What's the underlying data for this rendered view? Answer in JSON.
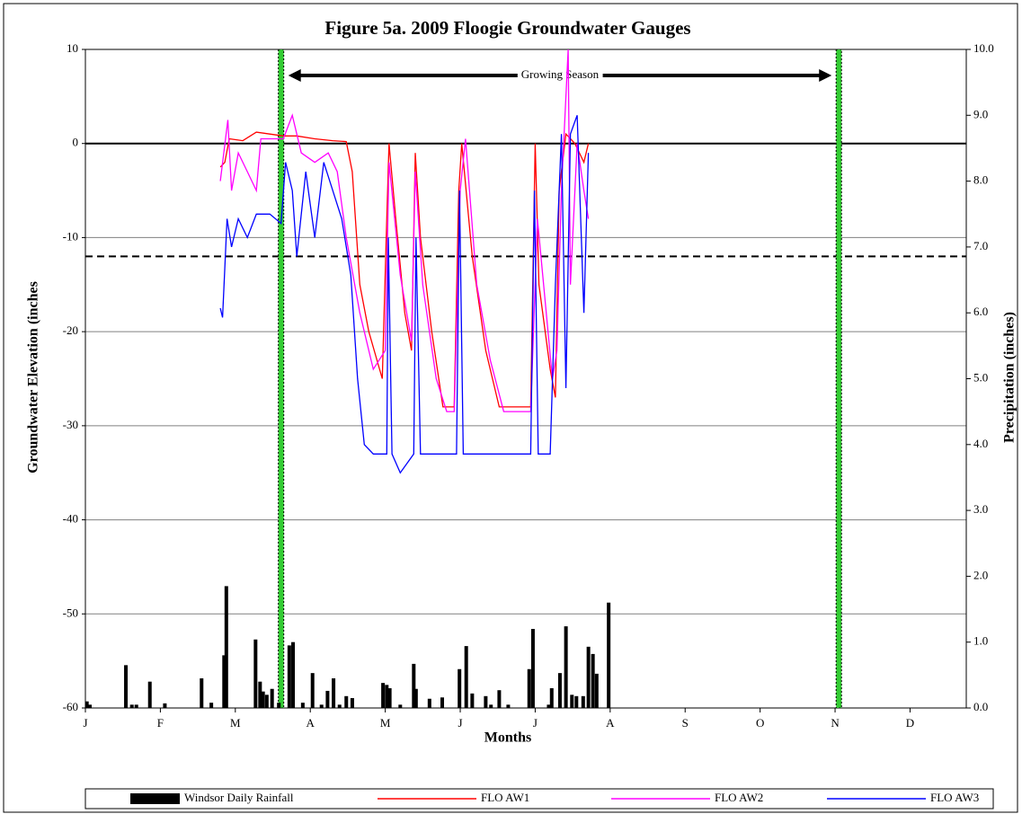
{
  "chart_data": {
    "type": "combo",
    "title": "Figure 5a.  2009 Floogie Groundwater Gauges",
    "xlabel": "Months",
    "ylabel": "Groundwater Elevation (inches",
    "y2label": "Precipitation (inches)",
    "annotation": "Growing Season",
    "xlim": [
      0,
      11.75
    ],
    "xticks": [
      {
        "value": 0,
        "label": "J"
      },
      {
        "value": 1,
        "label": "F"
      },
      {
        "value": 2,
        "label": "M"
      },
      {
        "value": 3,
        "label": "A"
      },
      {
        "value": 4,
        "label": "M"
      },
      {
        "value": 5,
        "label": "J"
      },
      {
        "value": 6,
        "label": "J"
      },
      {
        "value": 7,
        "label": "A"
      },
      {
        "value": 8,
        "label": "S"
      },
      {
        "value": 9,
        "label": "O"
      },
      {
        "value": 10,
        "label": "N"
      },
      {
        "value": 11,
        "label": "D"
      }
    ],
    "ylim": [
      -60,
      10
    ],
    "yticks": [
      10,
      0,
      -10,
      -20,
      -30,
      -40,
      -50,
      -60
    ],
    "y2lim": [
      0,
      10
    ],
    "y2ticks": [
      {
        "value": 0,
        "label": "0.0"
      },
      {
        "value": 1,
        "label": "1.0"
      },
      {
        "value": 2,
        "label": "2.0"
      },
      {
        "value": 3,
        "label": "3.0"
      },
      {
        "value": 4,
        "label": "4.0"
      },
      {
        "value": 5,
        "label": "5.0"
      },
      {
        "value": 6,
        "label": "6.0"
      },
      {
        "value": 7,
        "label": "7.0"
      },
      {
        "value": 8,
        "label": "8.0"
      },
      {
        "value": 9,
        "label": "9.0"
      },
      {
        "value": 10,
        "label": "10.0"
      }
    ],
    "grid": true,
    "reference_lines": [
      {
        "value": 0,
        "style": "solid"
      },
      {
        "value": -12,
        "style": "dashed"
      }
    ],
    "growing_season": [
      2.61,
      10.05
    ],
    "series": [
      {
        "name": "Windsor Daily Rainfall",
        "type": "bar",
        "axis": "y2",
        "color": "#000000",
        "x": [
          0.02,
          0.06,
          0.54,
          0.62,
          0.68,
          0.86,
          1.06,
          1.55,
          1.68,
          1.85,
          1.88,
          2.27,
          2.33,
          2.37,
          2.42,
          2.49,
          2.58,
          2.72,
          2.77,
          2.9,
          3.03,
          3.15,
          3.23,
          3.31,
          3.39,
          3.48,
          3.56,
          3.97,
          4.02,
          4.06,
          4.2,
          4.38,
          4.41,
          4.59,
          4.76,
          4.99,
          5.08,
          5.16,
          5.34,
          5.41,
          5.52,
          5.64,
          5.92,
          5.97,
          6.18,
          6.22,
          6.33,
          6.41,
          6.49,
          6.55,
          6.64,
          6.71,
          6.77,
          6.82,
          6.98
        ],
        "values": [
          0.1,
          0.05,
          0.65,
          0.05,
          0.05,
          0.4,
          0.07,
          0.45,
          0.08,
          0.8,
          1.85,
          1.04,
          0.4,
          0.25,
          0.2,
          0.29,
          0.08,
          0.95,
          1.0,
          0.08,
          0.53,
          0.05,
          0.26,
          0.45,
          0.05,
          0.18,
          0.15,
          0.38,
          0.35,
          0.3,
          0.05,
          0.67,
          0.29,
          0.14,
          0.16,
          0.59,
          0.94,
          0.22,
          0.18,
          0.05,
          0.27,
          0.05,
          0.59,
          1.2,
          0.05,
          0.3,
          0.53,
          1.24,
          0.2,
          0.18,
          0.18,
          0.93,
          0.82,
          0.52,
          1.6
        ]
      },
      {
        "name": "FLO AW1",
        "type": "line",
        "color": "#ff0000",
        "x": [
          1.8,
          1.86,
          1.92,
          2.1,
          2.28,
          2.46,
          2.64,
          2.82,
          3.06,
          3.3,
          3.48,
          3.56,
          3.66,
          3.78,
          3.96,
          4.02,
          4.05,
          4.14,
          4.26,
          4.35,
          4.4,
          4.47,
          4.62,
          4.77,
          4.92,
          4.98,
          5.02,
          5.16,
          5.34,
          5.52,
          5.94,
          6.0,
          6.05,
          6.2,
          6.27,
          6.32,
          6.41,
          6.53,
          6.65,
          6.71
        ],
        "values": [
          -2.5,
          -2,
          0.5,
          0.3,
          1.2,
          1,
          0.8,
          0.8,
          0.5,
          0.3,
          0.2,
          -3,
          -15,
          -20,
          -25,
          -8,
          0,
          -8,
          -18,
          -22,
          -1,
          -10,
          -20,
          -28,
          -28,
          -5,
          0,
          -12,
          -22,
          -28,
          -28,
          0,
          -15,
          -24,
          -27,
          -5,
          1,
          0,
          -2,
          0
        ]
      },
      {
        "name": "FLO AW2",
        "type": "line",
        "color": "#ff00ff",
        "x": [
          1.8,
          1.9,
          1.95,
          2.04,
          2.16,
          2.28,
          2.34,
          2.46,
          2.64,
          2.76,
          2.88,
          3.06,
          3.24,
          3.36,
          3.48,
          3.66,
          3.84,
          4.0,
          4.05,
          4.2,
          4.35,
          4.4,
          4.5,
          4.68,
          4.82,
          4.92,
          5.0,
          5.07,
          5.22,
          5.4,
          5.58,
          5.94,
          6.03,
          6.23,
          6.29,
          6.35,
          6.44,
          6.47,
          6.56,
          6.65,
          6.71
        ],
        "values": [
          -4,
          2.5,
          -5,
          -1,
          -3,
          -5,
          0.5,
          0.5,
          0.5,
          3,
          -1,
          -2,
          -1,
          -3,
          -10,
          -18,
          -24,
          -22,
          -2,
          -14,
          -21,
          -3,
          -15,
          -25,
          -28.5,
          -28.5,
          -5,
          0.5,
          -15,
          -23,
          -28.5,
          -28.5,
          -8,
          -25,
          -22,
          -5,
          10,
          -15,
          0,
          -5,
          -8
        ]
      },
      {
        "name": "FLO AW3",
        "type": "line",
        "color": "#0000ff",
        "x": [
          1.8,
          1.83,
          1.89,
          1.95,
          2.04,
          2.16,
          2.28,
          2.46,
          2.61,
          2.67,
          2.76,
          2.82,
          2.94,
          3.06,
          3.18,
          3.3,
          3.42,
          3.54,
          3.63,
          3.72,
          3.84,
          4.02,
          4.04,
          4.09,
          4.2,
          4.38,
          4.41,
          4.47,
          4.86,
          4.95,
          4.99,
          5.04,
          5.94,
          5.99,
          6.04,
          6.2,
          6.27,
          6.35,
          6.41,
          6.47,
          6.56,
          6.65,
          6.71
        ],
        "values": [
          -17.5,
          -18.5,
          -8,
          -11,
          -8,
          -10,
          -7.5,
          -7.5,
          -8.5,
          -2,
          -5,
          -12,
          -3,
          -10,
          -2,
          -5,
          -8,
          -14,
          -25,
          -32,
          -33,
          -33,
          -10,
          -33,
          -35,
          -33,
          -10,
          -33,
          -33,
          -33,
          -5,
          -33,
          -33,
          -5,
          -33,
          -33,
          -15,
          1,
          -26,
          1,
          3,
          -18,
          -1
        ]
      }
    ]
  }
}
